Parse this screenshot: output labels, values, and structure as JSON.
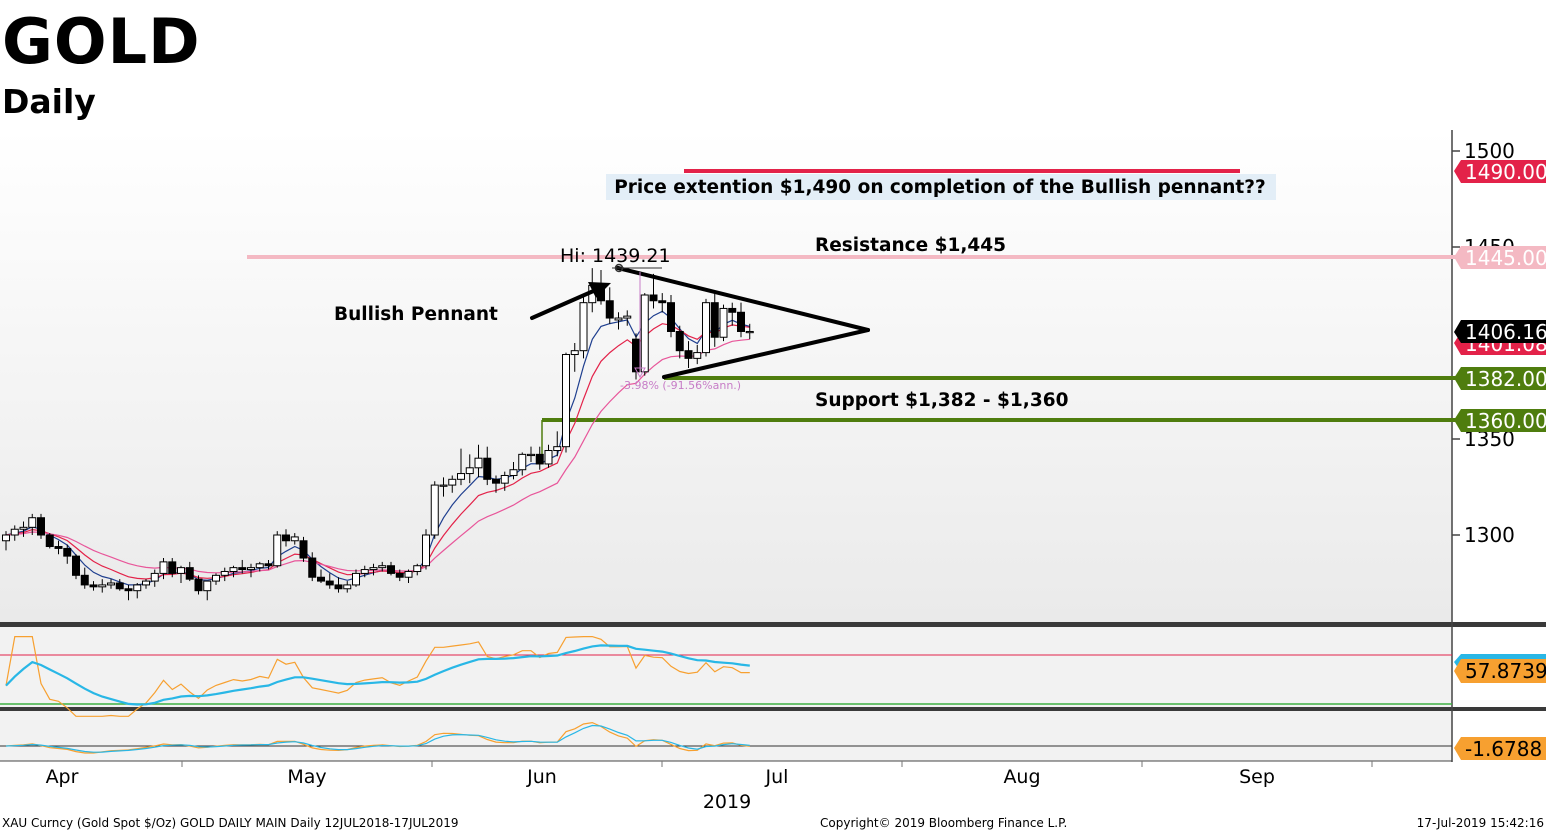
{
  "header": {
    "title": "GOLD",
    "subtitle": "Daily"
  },
  "footer": {
    "left": "XAU Curncy (Gold Spot   $/Oz) GOLD DAILY MAIN  Daily 12JUL2018-17JUL2019",
    "center": "Copyright© 2019 Bloomberg Finance L.P.",
    "right": "17-Jul-2019 15:42:16"
  },
  "chart_data": {
    "type": "candlestick",
    "title": "GOLD",
    "subtitle": "Daily",
    "ylim": [
      1250,
      1510
    ],
    "y_ticks": [
      1300,
      1350,
      1450,
      1500
    ],
    "x_month_labels": [
      "Apr",
      "May",
      "Jun",
      "Jul",
      "Aug",
      "Sep"
    ],
    "x_year_label": "2019",
    "last_price": "1406.16",
    "price_tags": [
      {
        "label": "1490.00",
        "value": 1490,
        "color": "#e32249"
      },
      {
        "label": "1445.00",
        "value": 1445,
        "color": "#f4b9c3"
      },
      {
        "label": "1401.08",
        "value": 1401,
        "color": "#e32249"
      },
      {
        "label": "1406.16",
        "value": 1406.16,
        "color": "#000000"
      },
      {
        "label": "1382.00",
        "value": 1382,
        "color": "#4f7d0e"
      },
      {
        "label": "1360.00",
        "value": 1360,
        "color": "#4f7d0e"
      }
    ],
    "levels": [
      {
        "name": "Resistance",
        "value": 1445,
        "color": "#f4b9c3"
      },
      {
        "name": "Support",
        "value": 1382,
        "color": "#4f7d0e"
      },
      {
        "name": "Support",
        "value": 1360,
        "color": "#4f7d0e"
      },
      {
        "name": "Target",
        "value": 1490,
        "color": "#e32249"
      }
    ],
    "annotations": {
      "target": "Price extention $1,490 on completion of the Bullish pennant??",
      "resistance": "Resistance $1,445",
      "support": "Support $1,382 - $1,360",
      "pattern": "Bullish Pennant",
      "high": "Hi: 1439.21",
      "change": "-3.98% (-91.56%ann.)"
    },
    "candles": [
      {
        "o": 1297,
        "h": 1302,
        "l": 1292,
        "c": 1300
      },
      {
        "o": 1300,
        "h": 1305,
        "l": 1297,
        "c": 1303
      },
      {
        "o": 1303,
        "h": 1307,
        "l": 1299,
        "c": 1304
      },
      {
        "o": 1304,
        "h": 1311,
        "l": 1300,
        "c": 1309
      },
      {
        "o": 1309,
        "h": 1311,
        "l": 1298,
        "c": 1300
      },
      {
        "o": 1300,
        "h": 1301,
        "l": 1293,
        "c": 1294
      },
      {
        "o": 1294,
        "h": 1297,
        "l": 1290,
        "c": 1293
      },
      {
        "o": 1293,
        "h": 1295,
        "l": 1285,
        "c": 1289
      },
      {
        "o": 1289,
        "h": 1290,
        "l": 1277,
        "c": 1279
      },
      {
        "o": 1279,
        "h": 1283,
        "l": 1272,
        "c": 1274
      },
      {
        "o": 1274,
        "h": 1276,
        "l": 1271,
        "c": 1273
      },
      {
        "o": 1273,
        "h": 1277,
        "l": 1270,
        "c": 1274
      },
      {
        "o": 1274,
        "h": 1277,
        "l": 1272,
        "c": 1275
      },
      {
        "o": 1275,
        "h": 1277,
        "l": 1271,
        "c": 1272
      },
      {
        "o": 1272,
        "h": 1274,
        "l": 1266,
        "c": 1271
      },
      {
        "o": 1271,
        "h": 1275,
        "l": 1267,
        "c": 1274
      },
      {
        "o": 1274,
        "h": 1277,
        "l": 1272,
        "c": 1276
      },
      {
        "o": 1276,
        "h": 1282,
        "l": 1273,
        "c": 1280
      },
      {
        "o": 1280,
        "h": 1288,
        "l": 1277,
        "c": 1286
      },
      {
        "o": 1286,
        "h": 1288,
        "l": 1278,
        "c": 1280
      },
      {
        "o": 1280,
        "h": 1284,
        "l": 1275,
        "c": 1283
      },
      {
        "o": 1283,
        "h": 1286,
        "l": 1276,
        "c": 1277
      },
      {
        "o": 1277,
        "h": 1279,
        "l": 1269,
        "c": 1271
      },
      {
        "o": 1271,
        "h": 1276,
        "l": 1266,
        "c": 1276
      },
      {
        "o": 1276,
        "h": 1280,
        "l": 1274,
        "c": 1279
      },
      {
        "o": 1279,
        "h": 1283,
        "l": 1276,
        "c": 1281
      },
      {
        "o": 1281,
        "h": 1284,
        "l": 1278,
        "c": 1283
      },
      {
        "o": 1283,
        "h": 1287,
        "l": 1280,
        "c": 1282
      },
      {
        "o": 1282,
        "h": 1285,
        "l": 1278,
        "c": 1283
      },
      {
        "o": 1283,
        "h": 1286,
        "l": 1281,
        "c": 1285
      },
      {
        "o": 1285,
        "h": 1287,
        "l": 1282,
        "c": 1284
      },
      {
        "o": 1284,
        "h": 1302,
        "l": 1283,
        "c": 1300
      },
      {
        "o": 1300,
        "h": 1303,
        "l": 1294,
        "c": 1297
      },
      {
        "o": 1297,
        "h": 1301,
        "l": 1295,
        "c": 1299
      },
      {
        "o": 1297,
        "h": 1299,
        "l": 1286,
        "c": 1288
      },
      {
        "o": 1288,
        "h": 1291,
        "l": 1276,
        "c": 1278
      },
      {
        "o": 1278,
        "h": 1282,
        "l": 1275,
        "c": 1276
      },
      {
        "o": 1276,
        "h": 1280,
        "l": 1272,
        "c": 1274
      },
      {
        "o": 1274,
        "h": 1278,
        "l": 1270,
        "c": 1272
      },
      {
        "o": 1272,
        "h": 1276,
        "l": 1270,
        "c": 1274
      },
      {
        "o": 1274,
        "h": 1282,
        "l": 1273,
        "c": 1280
      },
      {
        "o": 1280,
        "h": 1284,
        "l": 1278,
        "c": 1282
      },
      {
        "o": 1282,
        "h": 1285,
        "l": 1279,
        "c": 1283
      },
      {
        "o": 1283,
        "h": 1286,
        "l": 1281,
        "c": 1284
      },
      {
        "o": 1284,
        "h": 1286,
        "l": 1279,
        "c": 1280
      },
      {
        "o": 1280,
        "h": 1282,
        "l": 1276,
        "c": 1278
      },
      {
        "o": 1278,
        "h": 1282,
        "l": 1275,
        "c": 1281
      },
      {
        "o": 1281,
        "h": 1285,
        "l": 1279,
        "c": 1284
      },
      {
        "o": 1284,
        "h": 1303,
        "l": 1282,
        "c": 1300
      },
      {
        "o": 1300,
        "h": 1328,
        "l": 1298,
        "c": 1326
      },
      {
        "o": 1326,
        "h": 1330,
        "l": 1320,
        "c": 1326
      },
      {
        "o": 1326,
        "h": 1331,
        "l": 1322,
        "c": 1329
      },
      {
        "o": 1329,
        "h": 1345,
        "l": 1326,
        "c": 1332
      },
      {
        "o": 1332,
        "h": 1342,
        "l": 1327,
        "c": 1335
      },
      {
        "o": 1335,
        "h": 1347,
        "l": 1330,
        "c": 1340
      },
      {
        "o": 1340,
        "h": 1346,
        "l": 1326,
        "c": 1329
      },
      {
        "o": 1329,
        "h": 1331,
        "l": 1322,
        "c": 1327
      },
      {
        "o": 1327,
        "h": 1333,
        "l": 1323,
        "c": 1331
      },
      {
        "o": 1331,
        "h": 1338,
        "l": 1329,
        "c": 1334
      },
      {
        "o": 1334,
        "h": 1343,
        "l": 1331,
        "c": 1342
      },
      {
        "o": 1342,
        "h": 1346,
        "l": 1338,
        "c": 1342
      },
      {
        "o": 1342,
        "h": 1346,
        "l": 1334,
        "c": 1337
      },
      {
        "o": 1337,
        "h": 1347,
        "l": 1335,
        "c": 1344
      },
      {
        "o": 1344,
        "h": 1354,
        "l": 1341,
        "c": 1346
      },
      {
        "o": 1346,
        "h": 1395,
        "l": 1343,
        "c": 1394
      },
      {
        "o": 1394,
        "h": 1400,
        "l": 1385,
        "c": 1396
      },
      {
        "o": 1396,
        "h": 1425,
        "l": 1392,
        "c": 1421
      },
      {
        "o": 1421,
        "h": 1439,
        "l": 1416,
        "c": 1430
      },
      {
        "o": 1430,
        "h": 1438,
        "l": 1420,
        "c": 1422
      },
      {
        "o": 1422,
        "h": 1429,
        "l": 1410,
        "c": 1413
      },
      {
        "o": 1412,
        "h": 1416,
        "l": 1407,
        "c": 1413
      },
      {
        "o": 1413,
        "h": 1417,
        "l": 1409,
        "c": 1414
      },
      {
        "o": 1402,
        "h": 1405,
        "l": 1381,
        "c": 1385
      },
      {
        "o": 1385,
        "h": 1426,
        "l": 1383,
        "c": 1425
      },
      {
        "o": 1425,
        "h": 1436,
        "l": 1418,
        "c": 1422
      },
      {
        "o": 1422,
        "h": 1426,
        "l": 1416,
        "c": 1421
      },
      {
        "o": 1421,
        "h": 1425,
        "l": 1403,
        "c": 1406
      },
      {
        "o": 1406,
        "h": 1409,
        "l": 1392,
        "c": 1396
      },
      {
        "o": 1396,
        "h": 1401,
        "l": 1387,
        "c": 1392
      },
      {
        "o": 1392,
        "h": 1399,
        "l": 1389,
        "c": 1395
      },
      {
        "o": 1395,
        "h": 1423,
        "l": 1393,
        "c": 1421
      },
      {
        "o": 1421,
        "h": 1426,
        "l": 1398,
        "c": 1403
      },
      {
        "o": 1403,
        "h": 1420,
        "l": 1401,
        "c": 1418
      },
      {
        "o": 1418,
        "h": 1421,
        "l": 1409,
        "c": 1416
      },
      {
        "o": 1416,
        "h": 1421,
        "l": 1403,
        "c": 1406
      },
      {
        "o": 1406,
        "h": 1410,
        "l": 1402,
        "c": 1406
      }
    ],
    "moving_averages": [
      "blue fast MA",
      "red slow MA",
      "pink slower MA"
    ],
    "rsi": {
      "last_label": "57.8739",
      "upper_line": 70,
      "lower_line": 30
    },
    "oscillator": {
      "last_label": "-1.6788"
    }
  }
}
